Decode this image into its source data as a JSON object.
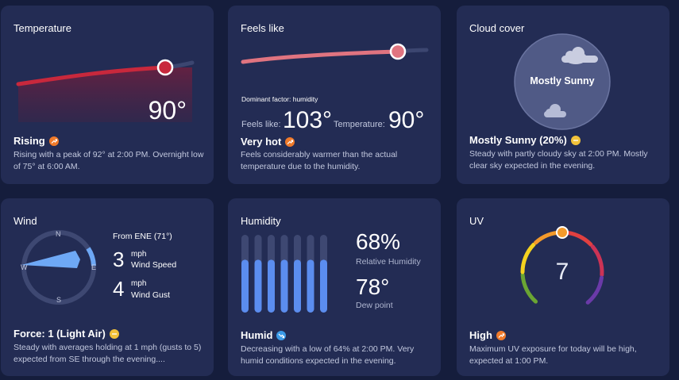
{
  "temperature": {
    "title": "Temperature",
    "value": "90°",
    "status": "Rising",
    "status_icon": "trend-up-icon",
    "description": "Rising with a peak of 92° at 2:00 PM. Overnight low of 75° at 6:00 AM."
  },
  "feels_like": {
    "title": "Feels like",
    "dominant_factor": "Dominant factor: humidity",
    "feels_like_label": "Feels like:",
    "feels_like_value": "103°",
    "temperature_label": "Temperature:",
    "temperature_value": "90°",
    "status": "Very hot",
    "status_icon": "trend-up-icon",
    "description": "Feels considerably warmer than the actual temperature due to the humidity."
  },
  "cloud_cover": {
    "title": "Cloud cover",
    "center_label": "Mostly Sunny",
    "status": "Mostly Sunny (20%)",
    "status_icon": "sun-icon",
    "description": "Steady with partly cloudy sky at 2:00 PM. Mostly clear sky expected in the evening."
  },
  "wind": {
    "title": "Wind",
    "compass": {
      "n": "N",
      "e": "E",
      "s": "S",
      "w": "W"
    },
    "direction": "From ENE (71°)",
    "direction_deg": 71,
    "speed_value": "3",
    "speed_unit": "mph",
    "speed_label": "Wind Speed",
    "gust_value": "4",
    "gust_unit": "mph",
    "gust_label": "Wind Gust",
    "status": "Force: 1 (Light Air)",
    "status_icon": "steady-icon",
    "description": "Steady with averages holding at 1 mph (gusts to 5) expected from SE through the evening...."
  },
  "humidity": {
    "title": "Humidity",
    "bar_fill_fraction": 0.68,
    "bar_count": 7,
    "relative_value": "68%",
    "relative_label": "Relative Humidity",
    "dew_value": "78°",
    "dew_label": "Dew point",
    "status": "Humid",
    "status_icon": "trend-down-icon",
    "description": "Decreasing with a low of 64% at 2:00 PM. Very humid conditions expected in the evening."
  },
  "uv": {
    "title": "UV",
    "value": "7",
    "level_fraction": 0.5,
    "status": "High",
    "status_icon": "trend-up-icon",
    "description": "Maximum UV exposure for today will be high, expected at 1:00 PM."
  },
  "colors": {
    "background": "#151d3c",
    "card": "#232c54",
    "temperature_line": "#c8283c",
    "feels_line": "#e07480",
    "humidity_bar": "#5b8def",
    "wind_arrow": "#6ea8f5",
    "badge_orange": "#f07a2a",
    "badge_yellow": "#f2c23a",
    "badge_blue": "#3b9be8"
  }
}
